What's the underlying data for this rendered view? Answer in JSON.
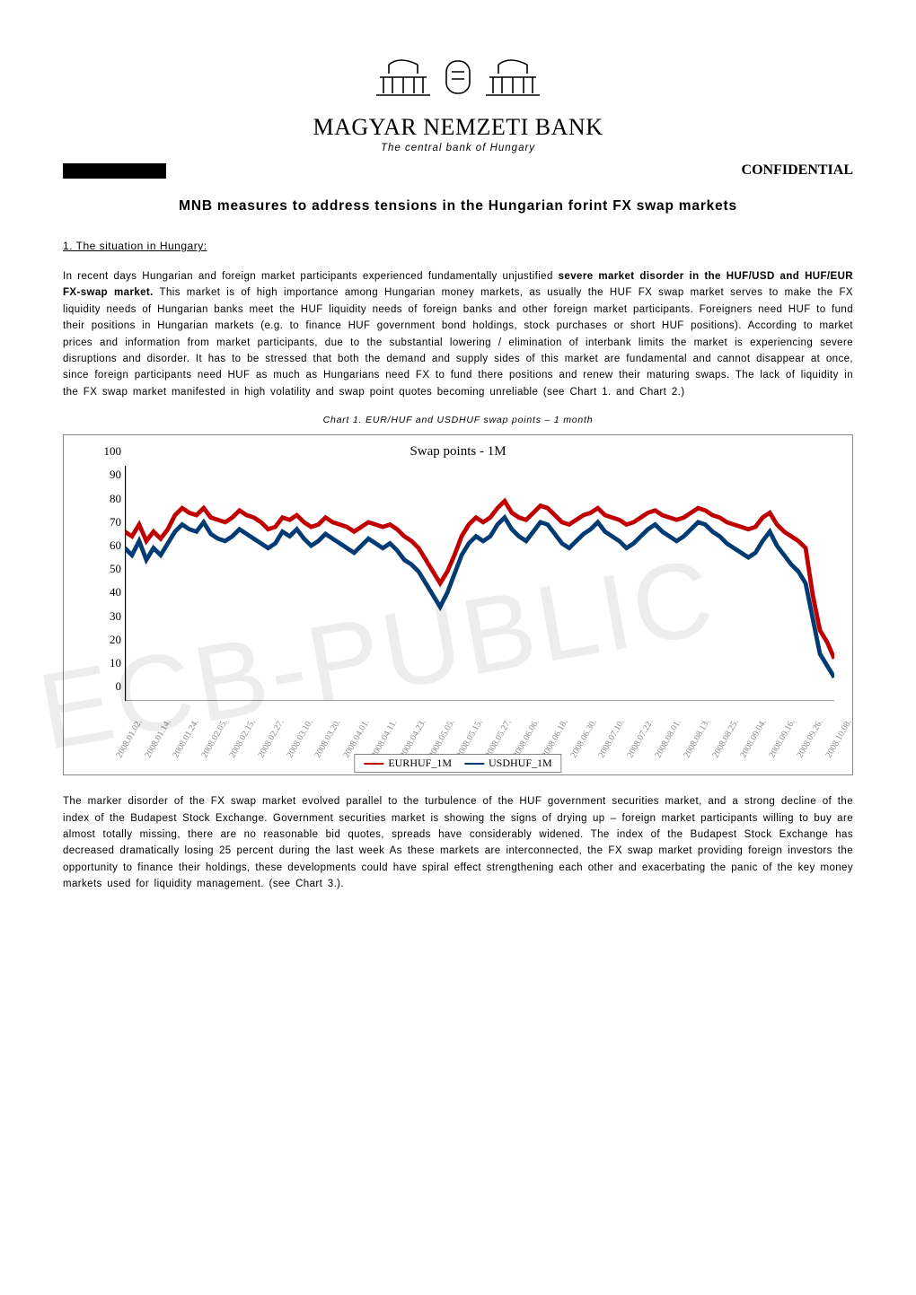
{
  "header": {
    "org_name": "MAGYAR NEMZETI BANK",
    "subtitle": "The central bank of Hungary",
    "confidential": "CONFIDENTIAL"
  },
  "title": "MNB measures to address tensions in the Hungarian forint FX swap markets",
  "section1": {
    "heading": "1. The situation in Hungary:",
    "para1_a": "In recent days Hungarian and foreign market participants experienced fundamentally unjustified ",
    "para1_b": "severe market disorder in the HUF/USD and HUF/EUR FX-swap market.",
    "para1_c": " This market is of high importance among Hungarian money markets, as usually the HUF FX swap market serves to make the FX liquidity needs of Hungarian banks meet the HUF liquidity needs of foreign banks and other foreign market participants. Foreigners need HUF to fund their positions in Hungarian markets (e.g. to finance HUF government bond holdings, stock purchases or short HUF positions). According to market prices and information from market participants, due to the substantial lowering / elimination of interbank limits the market is experiencing severe disruptions and disorder. It has to be stressed that both the demand and supply sides of this market are fundamental and cannot disappear at once, since foreign participants need HUF as much as Hungarians need FX to fund there positions and renew their maturing swaps. The lack of liquidity in the FX swap market manifested in high volatility and swap point quotes becoming unreliable (see Chart 1. and Chart 2.)"
  },
  "chart": {
    "caption": "Chart 1. EUR/HUF and USDHUF swap points – 1 month",
    "title": "Swap points - 1M",
    "type": "line",
    "ylim": [
      0,
      100
    ],
    "ytick_step": 10,
    "yticks": [
      0,
      10,
      20,
      30,
      40,
      50,
      60,
      70,
      80,
      90,
      100
    ],
    "x_labels": [
      "2008.01.02.",
      "2008.01.14.",
      "2008.01.24.",
      "2008.02.05.",
      "2008.02.15.",
      "2008.02.27.",
      "2008.03.10.",
      "2008.03.20.",
      "2008.04.01.",
      "2008.04.11.",
      "2008.04.23.",
      "2008.05.05.",
      "2008.05.15.",
      "2008.05.27.",
      "2008.06.06.",
      "2008.06.18.",
      "2008.06.30.",
      "2008.07.10.",
      "2008.07.22.",
      "2008.08.01.",
      "2008.08.13.",
      "2008.08.25.",
      "2008.09.04.",
      "2008.09.16.",
      "2008.09.26.",
      "2008.10.08."
    ],
    "series": [
      {
        "name": "EURHUF_1M",
        "color": "#c00000",
        "line_width": 1.2,
        "values": [
          72,
          70,
          75,
          68,
          72,
          69,
          73,
          79,
          82,
          80,
          79,
          82,
          78,
          77,
          76,
          78,
          81,
          79,
          78,
          76,
          73,
          74,
          78,
          77,
          79,
          76,
          74,
          75,
          78,
          76,
          75,
          74,
          72,
          74,
          76,
          75,
          74,
          75,
          73,
          70,
          68,
          65,
          60,
          55,
          50,
          55,
          62,
          70,
          75,
          78,
          76,
          78,
          82,
          85,
          80,
          78,
          77,
          80,
          83,
          82,
          79,
          76,
          75,
          77,
          79,
          80,
          82,
          79,
          78,
          77,
          75,
          76,
          78,
          80,
          81,
          79,
          78,
          77,
          78,
          80,
          82,
          81,
          79,
          78,
          76,
          75,
          74,
          73,
          74,
          78,
          80,
          75,
          72,
          70,
          68,
          65,
          45,
          30,
          25,
          18
        ]
      },
      {
        "name": "USDHUF_1M",
        "color": "#003b73",
        "line_width": 1.2,
        "values": [
          65,
          62,
          68,
          60,
          65,
          62,
          67,
          72,
          75,
          73,
          72,
          76,
          71,
          69,
          68,
          70,
          73,
          71,
          69,
          67,
          65,
          67,
          72,
          70,
          73,
          69,
          66,
          68,
          71,
          69,
          67,
          65,
          63,
          66,
          69,
          67,
          65,
          67,
          64,
          60,
          58,
          55,
          50,
          45,
          40,
          46,
          54,
          62,
          67,
          70,
          68,
          70,
          75,
          78,
          73,
          70,
          68,
          72,
          76,
          75,
          71,
          67,
          65,
          68,
          71,
          73,
          76,
          72,
          70,
          68,
          65,
          67,
          70,
          73,
          75,
          72,
          70,
          68,
          70,
          73,
          76,
          75,
          72,
          70,
          67,
          65,
          63,
          61,
          63,
          68,
          72,
          66,
          62,
          58,
          55,
          50,
          35,
          20,
          15,
          10
        ]
      }
    ],
    "legend": [
      "EURHUF_1M",
      "USDHUF_1M"
    ],
    "background_color": "#ffffff",
    "axis_color": "#000000",
    "xtick_color": "#888888",
    "tick_font": "Times New Roman",
    "tick_fontsize": 12
  },
  "para2": "The marker disorder of the FX swap market evolved parallel to the turbulence of the HUF government securities market, and a strong decline of the index of the Budapest Stock Exchange. Government securities market is showing the signs of drying up – foreign market participants willing to buy are almost totally missing, there are no reasonable bid quotes, spreads have considerably widened. The index of the Budapest Stock Exchange has decreased dramatically losing 25 percent during the last week As these markets are interconnected, the FX swap market providing foreign investors the opportunity to finance their holdings, these developments could have spiral effect strengthening each other and exacerbating the panic of the key money markets used for liquidity management. (see Chart 3.).",
  "watermark": "ECB-PUBLIC"
}
